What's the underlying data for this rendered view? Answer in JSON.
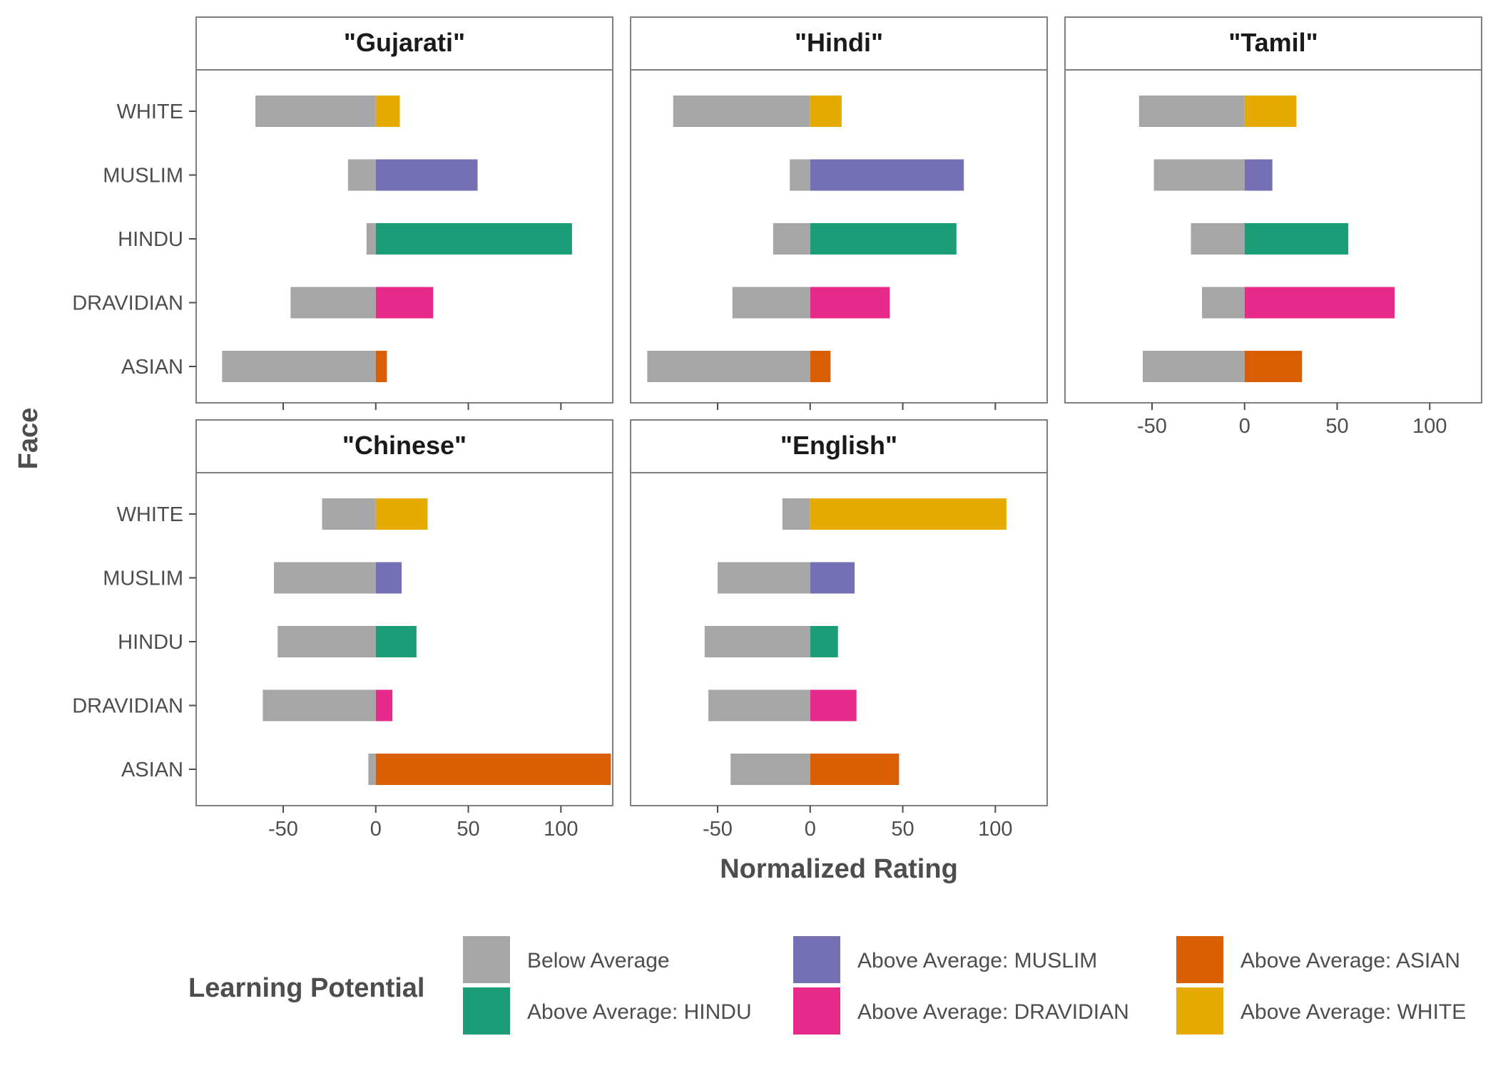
{
  "chart_data": {
    "type": "bar",
    "orientation": "horizontal",
    "stacked": "diverging",
    "xlabel": "Normalized Rating",
    "ylabel": "Face",
    "xlim": [
      -97,
      128
    ],
    "xticks": [
      -50,
      0,
      50,
      100
    ],
    "xtick_labels": [
      "-50",
      "0",
      "50",
      "100"
    ],
    "categories": [
      "WHITE",
      "MUSLIM",
      "HINDU",
      "DRAVIDIAN",
      "ASIAN"
    ],
    "facets": [
      {
        "title": "\"Gujarati\"",
        "below": [
          -65,
          -15,
          -5,
          -46,
          -83
        ],
        "above": [
          13,
          55,
          106,
          31,
          6
        ]
      },
      {
        "title": "\"Hindi\"",
        "below": [
          -74,
          -11,
          -20,
          -42,
          -88
        ],
        "above": [
          17,
          83,
          79,
          43,
          11
        ]
      },
      {
        "title": "\"Tamil\"",
        "below": [
          -57,
          -49,
          -29,
          -23,
          -55
        ],
        "above": [
          28,
          15,
          56,
          81,
          31
        ]
      },
      {
        "title": "\"Chinese\"",
        "below": [
          -29,
          -55,
          -53,
          -61,
          -4
        ],
        "above": [
          28,
          14,
          22,
          9,
          127
        ]
      },
      {
        "title": "\"English\"",
        "below": [
          -15,
          -50,
          -57,
          -55,
          -43
        ],
        "above": [
          106,
          24,
          15,
          25,
          48
        ]
      }
    ],
    "legend": {
      "title": "Learning Potential",
      "position": "bottom",
      "items": [
        {
          "label": "Below Average",
          "color": "#a6a6a6"
        },
        {
          "label": "Above Average: HINDU",
          "color": "#1b9e77"
        },
        {
          "label": "Above Average: MUSLIM",
          "color": "#7570b3"
        },
        {
          "label": "Above Average: DRAVIDIAN",
          "color": "#e7298a"
        },
        {
          "label": "Above Average: ASIAN",
          "color": "#d95f02"
        },
        {
          "label": "Above Average: WHITE",
          "color": "#e6ab02"
        }
      ]
    },
    "colors": {
      "below": "#a6a6a6",
      "WHITE": "#e6ab02",
      "MUSLIM": "#7570b3",
      "HINDU": "#1b9e77",
      "DRAVIDIAN": "#e7298a",
      "ASIAN": "#d95f02"
    }
  }
}
